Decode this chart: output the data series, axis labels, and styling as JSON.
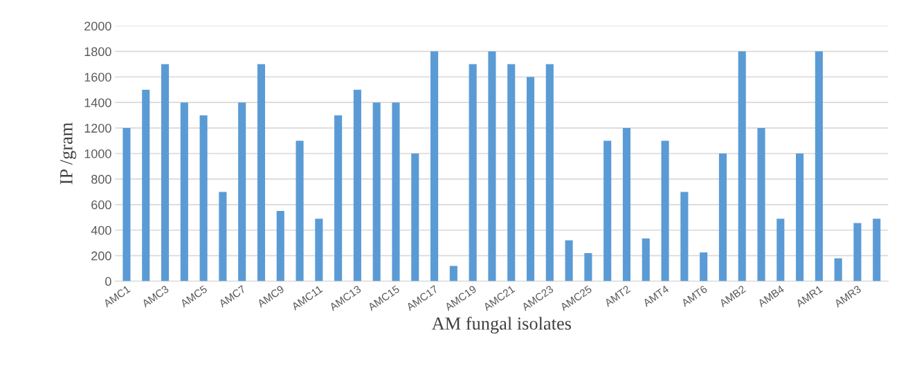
{
  "chart_data": {
    "type": "bar",
    "xlabel": "AM fungal isolates",
    "ylabel": "IP /gram",
    "categories": [
      "AMC1",
      null,
      "AMC3",
      null,
      "AMC5",
      null,
      "AMC7",
      null,
      "AMC9",
      null,
      "AMC11",
      null,
      "AMC13",
      null,
      "AMC15",
      null,
      "AMC17",
      null,
      "AMC19",
      null,
      "AMC21",
      null,
      "AMC23",
      null,
      "AMC25",
      null,
      "AMT2",
      null,
      "AMT4",
      null,
      "AMT6",
      null,
      "AMB2",
      null,
      "AMB4",
      null,
      "AMR1",
      null,
      "AMR3",
      null
    ],
    "values": [
      1200,
      1500,
      1700,
      1400,
      1300,
      700,
      1400,
      1700,
      550,
      1100,
      490,
      1300,
      1500,
      1400,
      1400,
      1000,
      1800,
      120,
      1700,
      1800,
      1700,
      1600,
      1700,
      320,
      220,
      1100,
      1200,
      335,
      1100,
      700,
      225,
      1000,
      1800,
      1200,
      490,
      1000,
      1800,
      180,
      455,
      490
    ],
    "color": "#5b9bd5",
    "ylim": [
      0,
      2000
    ],
    "yticks": [
      0,
      200,
      400,
      600,
      800,
      1000,
      1200,
      1400,
      1600,
      1800,
      2000
    ],
    "grid": "y",
    "legend": false
  }
}
